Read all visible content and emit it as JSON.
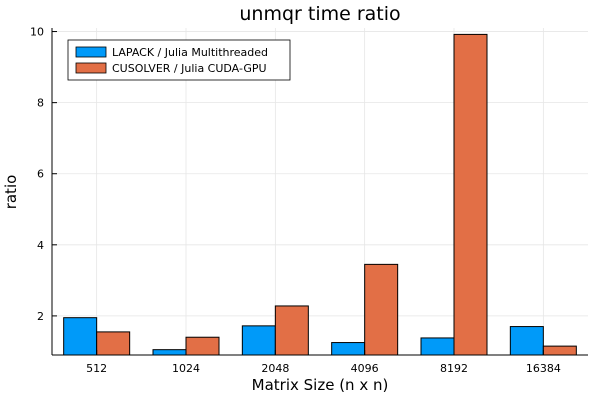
{
  "chart_data": {
    "type": "bar",
    "title": "unmqr time ratio",
    "xlabel": "Matrix Size (n x n)",
    "ylabel": "ratio",
    "categories": [
      "512",
      "1024",
      "2048",
      "4096",
      "8192",
      "16384"
    ],
    "series": [
      {
        "name": "LAPACK / Julia Multithreaded",
        "color": "#009af9",
        "values": [
          1.95,
          1.05,
          1.72,
          1.25,
          1.38,
          1.7
        ]
      },
      {
        "name": "CUSOLVER / Julia  CUDA-GPU",
        "color": "#e26f46",
        "values": [
          1.55,
          1.4,
          2.28,
          3.45,
          9.92,
          1.15
        ]
      }
    ],
    "ylim": [
      0.9,
      10.1
    ],
    "yticks": [
      "2",
      "4",
      "6",
      "8",
      "10"
    ],
    "grid": true,
    "legend_position": "top-left"
  }
}
